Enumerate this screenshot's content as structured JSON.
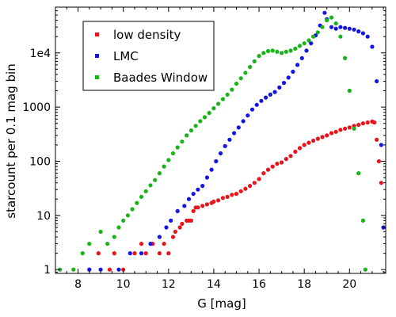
{
  "chart_data": {
    "type": "scatter",
    "xlabel": "G [mag]",
    "ylabel": "starcount per 0.1 mag bin",
    "xlim": [
      7.0,
      21.6
    ],
    "ylim": [
      0.85,
      70000
    ],
    "yscale": "log",
    "grid": false,
    "legend_position": "top-left",
    "x_ticks": [
      8,
      10,
      12,
      14,
      16,
      18,
      20
    ],
    "x_tick_labels": [
      "8",
      "10",
      "12",
      "14",
      "16",
      "18",
      "20"
    ],
    "y_ticks": [
      1,
      10,
      100,
      1000,
      10000
    ],
    "y_tick_labels": [
      "1",
      "10",
      "100",
      "1000",
      "1e4"
    ],
    "series": [
      {
        "name": "low density",
        "color": "#e8151b",
        "x": [
          8.5,
          8.9,
          9.4,
          9.6,
          10.0,
          10.5,
          10.8,
          11.0,
          11.3,
          11.6,
          11.8,
          12.0,
          12.2,
          12.3,
          12.5,
          12.6,
          12.8,
          12.9,
          13.0,
          13.1,
          13.2,
          13.3,
          13.5,
          13.7,
          13.9,
          14.0,
          14.2,
          14.4,
          14.6,
          14.8,
          15.0,
          15.2,
          15.4,
          15.6,
          15.8,
          16.0,
          16.2,
          16.4,
          16.6,
          16.8,
          17.0,
          17.2,
          17.4,
          17.6,
          17.8,
          18.0,
          18.2,
          18.4,
          18.6,
          18.8,
          19.0,
          19.2,
          19.4,
          19.6,
          19.8,
          20.0,
          20.2,
          20.4,
          20.6,
          20.8,
          21.0,
          21.1,
          21.2,
          21.3,
          21.4,
          21.5
        ],
        "y": [
          1,
          2,
          1,
          2,
          1,
          2,
          3,
          2,
          3,
          2,
          3,
          2,
          4,
          5,
          6,
          7,
          8,
          8,
          8,
          12,
          14,
          14,
          15,
          16,
          17,
          18,
          19,
          21,
          22,
          24,
          25,
          28,
          31,
          35,
          40,
          47,
          60,
          70,
          80,
          90,
          95,
          110,
          125,
          150,
          175,
          200,
          220,
          240,
          260,
          280,
          300,
          330,
          350,
          380,
          400,
          420,
          450,
          470,
          500,
          520,
          540,
          520,
          250,
          100,
          40,
          6
        ]
      },
      {
        "name": "LMC",
        "color": "#1515e0",
        "x": [
          8.5,
          9.0,
          9.8,
          10.3,
          10.8,
          11.2,
          11.6,
          11.9,
          12.1,
          12.4,
          12.7,
          12.9,
          13.1,
          13.3,
          13.5,
          13.7,
          13.9,
          14.1,
          14.3,
          14.5,
          14.7,
          14.9,
          15.1,
          15.3,
          15.5,
          15.7,
          15.9,
          16.1,
          16.3,
          16.5,
          16.7,
          16.9,
          17.1,
          17.3,
          17.5,
          17.7,
          17.9,
          18.1,
          18.3,
          18.5,
          18.7,
          18.9,
          19.0,
          19.2,
          19.4,
          19.6,
          19.8,
          20.0,
          20.2,
          20.4,
          20.6,
          20.8,
          21.0,
          21.2,
          21.4,
          21.5
        ],
        "y": [
          1,
          1,
          1,
          2,
          2,
          3,
          4,
          6,
          8,
          12,
          15,
          20,
          25,
          30,
          35,
          50,
          70,
          100,
          140,
          190,
          250,
          330,
          420,
          550,
          700,
          900,
          1100,
          1300,
          1500,
          1700,
          1900,
          2300,
          2800,
          3500,
          4500,
          6000,
          8000,
          11000,
          15000,
          21000,
          32000,
          55000,
          42000,
          30000,
          28000,
          30000,
          29000,
          28000,
          27000,
          25000,
          23000,
          20000,
          13000,
          3000,
          200,
          6
        ]
      },
      {
        "name": "Baades Window",
        "color": "#18b418",
        "x": [
          7.2,
          7.8,
          8.2,
          8.5,
          9.0,
          9.3,
          9.6,
          9.8,
          10.0,
          10.2,
          10.4,
          10.6,
          10.8,
          11.0,
          11.2,
          11.4,
          11.6,
          11.8,
          12.0,
          12.2,
          12.4,
          12.6,
          12.8,
          13.0,
          13.2,
          13.4,
          13.6,
          13.8,
          14.0,
          14.2,
          14.4,
          14.6,
          14.8,
          15.0,
          15.2,
          15.4,
          15.6,
          15.8,
          16.0,
          16.2,
          16.4,
          16.6,
          16.8,
          17.0,
          17.2,
          17.4,
          17.6,
          17.8,
          18.0,
          18.2,
          18.4,
          18.6,
          18.8,
          19.0,
          19.2,
          19.4,
          19.6,
          19.8,
          20.0,
          20.2,
          20.4,
          20.6,
          20.7
        ],
        "y": [
          1,
          1,
          2,
          3,
          5,
          3,
          4,
          6,
          8,
          10,
          13,
          17,
          22,
          28,
          36,
          45,
          60,
          80,
          105,
          140,
          180,
          230,
          300,
          370,
          450,
          550,
          650,
          780,
          950,
          1150,
          1400,
          1700,
          2100,
          2700,
          3400,
          4300,
          5500,
          7000,
          8800,
          10000,
          10800,
          11000,
          10500,
          10000,
          10500,
          11000,
          12000,
          13500,
          15000,
          17000,
          20000,
          24000,
          30000,
          40000,
          45000,
          35000,
          20000,
          8000,
          2000,
          400,
          60,
          8,
          1
        ]
      }
    ]
  }
}
